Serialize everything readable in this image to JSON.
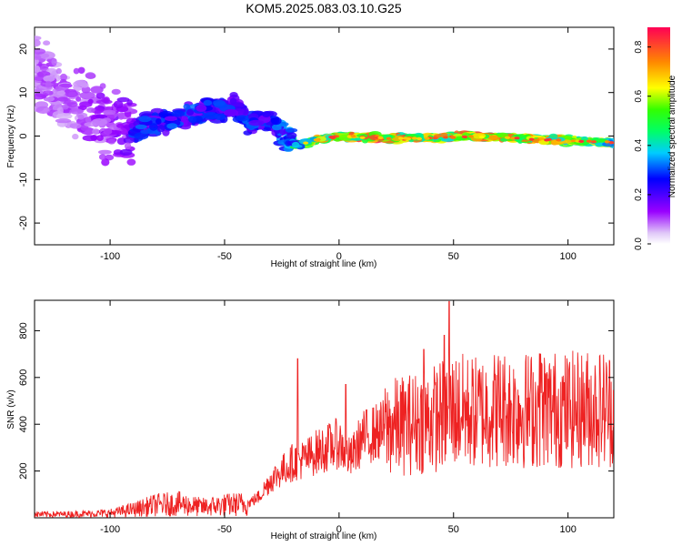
{
  "title": "KOM5.2025.083.03.10.G25",
  "chart_data": [
    {
      "type": "heatmap",
      "xlabel": "Height of straight line (km)",
      "ylabel": "Frequency (Hz)",
      "xlim": [
        -133,
        120
      ],
      "ylim": [
        -25,
        25
      ],
      "x_ticks": [
        -100,
        -50,
        0,
        50,
        100
      ],
      "y_ticks": [
        -20,
        -10,
        0,
        10,
        20
      ],
      "colorbar": {
        "label": "Normalized spectral amplitude",
        "range": [
          0,
          0.88
        ],
        "ticks": [
          0.0,
          0.2,
          0.4,
          0.6,
          0.8
        ],
        "colors": [
          "#e8d8f8",
          "#9900ff",
          "#0000ff",
          "#00ccff",
          "#00ff33",
          "#ffff00",
          "#ff8800",
          "#ff0055"
        ]
      },
      "ridge": {
        "x": [
          -133,
          -120,
          -100,
          -90,
          -80,
          -70,
          -60,
          -50,
          -45,
          -40,
          -30,
          -22,
          -18,
          -10,
          0,
          20,
          40,
          60,
          80,
          100,
          120
        ],
        "frequency": [
          15,
          8,
          3,
          1,
          3,
          4,
          6,
          6,
          7,
          3,
          4,
          -1,
          -2,
          -1,
          0,
          -0.5,
          -0.5,
          0,
          -0.5,
          -1,
          -1.5
        ],
        "amplitude": [
          0.15,
          0.15,
          0.2,
          0.25,
          0.25,
          0.25,
          0.25,
          0.25,
          0.2,
          0.25,
          0.25,
          0.3,
          0.45,
          0.55,
          0.6,
          0.7,
          0.6,
          0.65,
          0.6,
          0.55,
          0.5
        ]
      }
    },
    {
      "type": "line",
      "xlabel": "Height of straight line (km)",
      "ylabel": "SNR (v/v)",
      "xlim": [
        -133,
        120
      ],
      "ylim": [
        0,
        930
      ],
      "x_ticks": [
        -100,
        -50,
        0,
        50,
        100
      ],
      "y_ticks": [
        200,
        400,
        600,
        800
      ],
      "color": "#ee2222",
      "series": [
        {
          "x": [
            -133,
            -120,
            -100,
            -90,
            -80,
            -70,
            -60,
            -50,
            -40,
            -35,
            -30,
            -25,
            -20,
            -15,
            -10,
            -5,
            0,
            5,
            10,
            15,
            20,
            30,
            40,
            50,
            60,
            70,
            80,
            90,
            100,
            110,
            120
          ],
          "y": [
            15,
            15,
            20,
            35,
            55,
            60,
            45,
            55,
            60,
            90,
            160,
            200,
            240,
            250,
            280,
            300,
            320,
            250,
            340,
            360,
            380,
            400,
            420,
            460,
            450,
            470,
            460,
            470,
            460,
            470,
            470
          ],
          "spikes": [
            {
              "x": -18,
              "y": 680
            },
            {
              "x": 3,
              "y": 570
            },
            {
              "x": 48,
              "y": 925
            },
            {
              "x": 46,
              "y": 780
            },
            {
              "x": 37,
              "y": 720
            },
            {
              "x": 88,
              "y": 700
            }
          ]
        }
      ]
    }
  ]
}
